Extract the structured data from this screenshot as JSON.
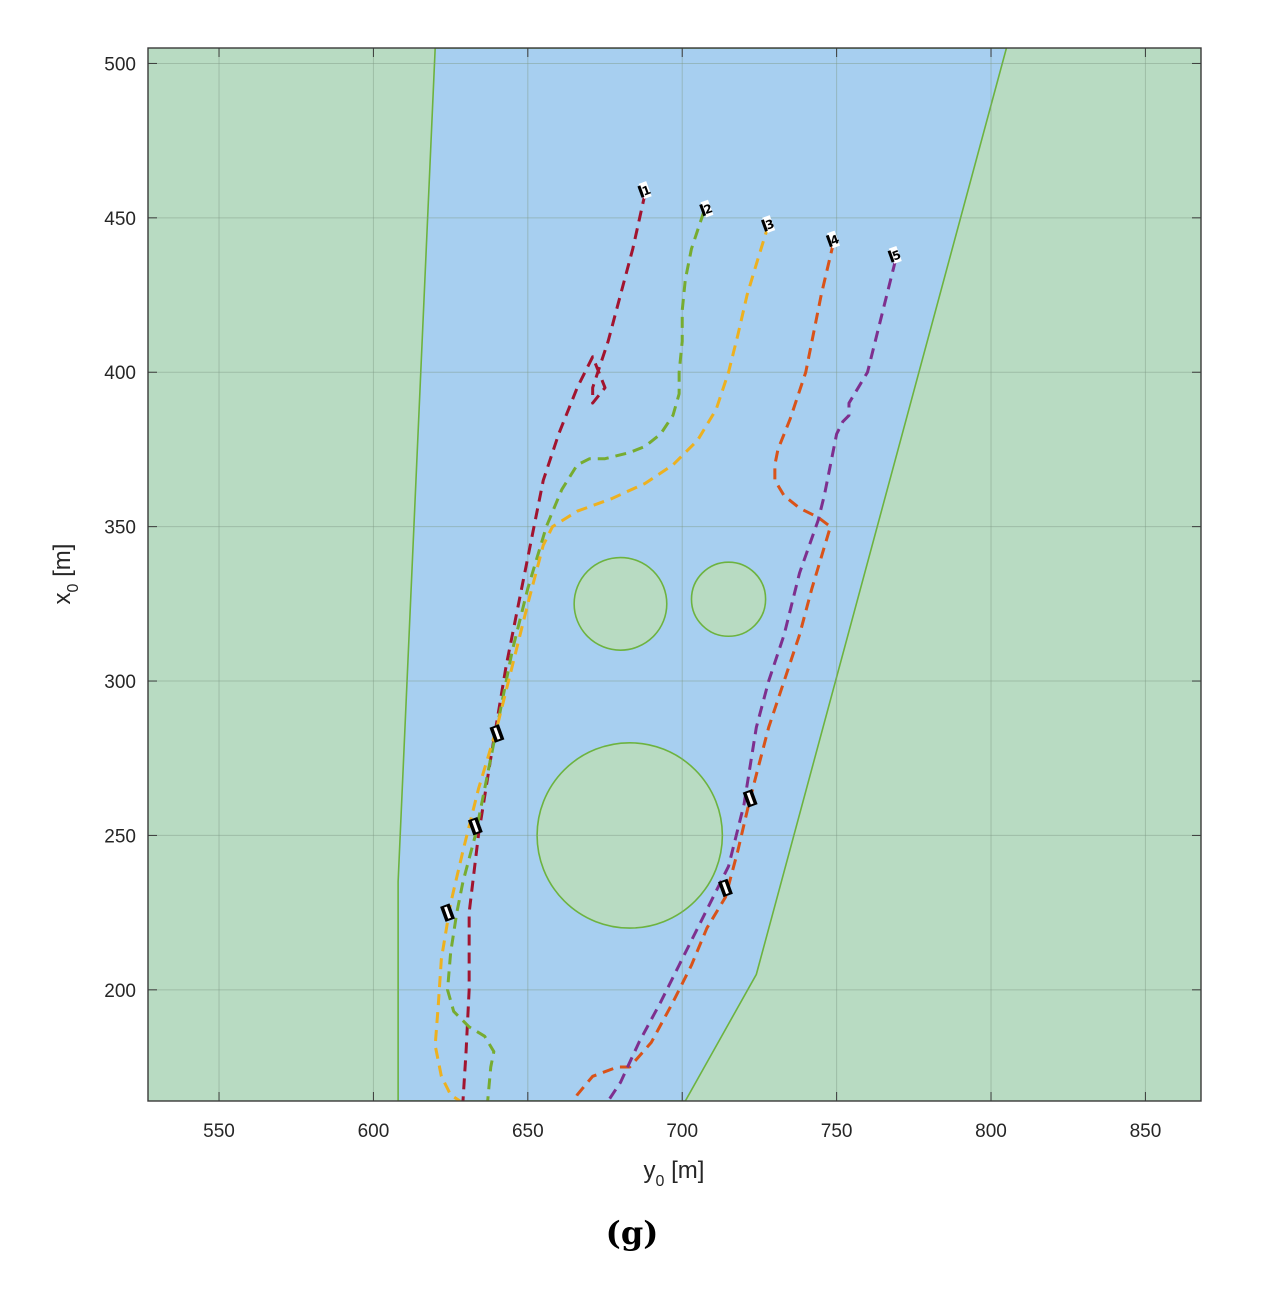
{
  "chart_data": {
    "type": "line",
    "title": "",
    "xlabel": {
      "main": "y",
      "sub": "0",
      "unit": " [m]"
    },
    "ylabel": {
      "main": "x",
      "sub": "0",
      "unit": " [m]"
    },
    "xlim": [
      527,
      868
    ],
    "ylim": [
      164,
      505
    ],
    "xticks": [
      550,
      600,
      650,
      700,
      750,
      800,
      850
    ],
    "yticks": [
      200,
      250,
      300,
      350,
      400,
      450,
      500
    ],
    "grid": true,
    "panel_label": "(g)",
    "colors": {
      "land": "#b8dbc2",
      "water": "#a7cff0",
      "shore": "#6db33f",
      "grid": "#7f9a86",
      "frame": "#3a3a3a"
    },
    "channel_polygon": [
      [
        620,
        505
      ],
      [
        805,
        505
      ],
      [
        724,
        205
      ],
      [
        701,
        164
      ],
      [
        608,
        164
      ],
      [
        608,
        235
      ]
    ],
    "obstacles": [
      {
        "cx": 680,
        "cy": 325,
        "r": 15
      },
      {
        "cx": 715,
        "cy": 326.5,
        "r": 12
      },
      {
        "cx": 683,
        "cy": 250,
        "r": 30
      }
    ],
    "series": [
      {
        "color": "#a2142f",
        "y": [
          688,
          684,
          676,
          671,
          671,
          675,
          671,
          666,
          660,
          655,
          652,
          648,
          643,
          638,
          634,
          631,
          631,
          630,
          629
        ],
        "x": [
          458,
          440,
          410,
          395,
          390,
          395,
          405,
          395,
          380,
          365,
          350,
          330,
          305,
          275,
          250,
          225,
          200,
          180,
          164
        ]
      },
      {
        "color": "#77ac30",
        "y": [
          707,
          703,
          701,
          700,
          700,
          699,
          699,
          697,
          693,
          688,
          683,
          675,
          670,
          666,
          661,
          656,
          653,
          650,
          645,
          641,
          637,
          633,
          629,
          627,
          625,
          624,
          626,
          631,
          636,
          639,
          638,
          637
        ],
        "x": [
          452,
          440,
          430,
          420,
          410,
          400,
          393,
          386,
          380,
          376,
          374,
          372,
          372,
          370,
          362,
          350,
          340,
          330,
          310,
          290,
          270,
          250,
          235,
          225,
          212,
          200,
          193,
          188,
          185,
          180,
          175,
          164
        ]
      },
      {
        "color": "#edb120",
        "y": [
          728,
          724,
          721,
          718,
          715,
          711,
          705,
          697,
          688,
          677,
          666,
          658,
          655,
          650,
          645,
          640,
          634,
          629,
          625,
          622,
          621,
          620,
          622,
          625,
          628
        ],
        "x": [
          448,
          435,
          425,
          412,
          400,
          388,
          378,
          370,
          364,
          359,
          355,
          350,
          344,
          325,
          305,
          285,
          265,
          245,
          228,
          210,
          195,
          182,
          172,
          166,
          164
        ]
      },
      {
        "color": "#d95319",
        "y": [
          749,
          745,
          740,
          735,
          731,
          730,
          730,
          733,
          738,
          744,
          748,
          745,
          742,
          738,
          733,
          728,
          722,
          718,
          714,
          708,
          703,
          697,
          690,
          683,
          679,
          671,
          666,
          665
        ],
        "x": [
          442,
          425,
          400,
          385,
          375,
          370,
          365,
          360,
          356,
          353,
          350,
          340,
          330,
          315,
          300,
          285,
          262,
          245,
          230,
          220,
          208,
          196,
          183,
          175,
          175,
          172,
          166,
          164
        ]
      },
      {
        "color": "#7e2f8e",
        "y": [
          769,
          765,
          760,
          757,
          754,
          754,
          752,
          750,
          748,
          746,
          744,
          738,
          733,
          728,
          724,
          720,
          715,
          710,
          705,
          699,
          693,
          686,
          680,
          676
        ],
        "x": [
          436,
          420,
          400,
          395,
          390,
          386,
          384,
          380,
          370,
          360,
          352,
          335,
          315,
          300,
          285,
          260,
          240,
          230,
          220,
          208,
          196,
          183,
          170,
          164
        ]
      }
    ],
    "markers": [
      {
        "y": 688,
        "x": 459,
        "label": "1"
      },
      {
        "y": 708,
        "x": 453,
        "label": "2"
      },
      {
        "y": 728,
        "x": 448,
        "label": "3"
      },
      {
        "y": 749,
        "x": 443,
        "label": "4"
      },
      {
        "y": 769,
        "x": 438,
        "label": "5"
      },
      {
        "y": 640,
        "x": 283,
        "label": ""
      },
      {
        "y": 633,
        "x": 253,
        "label": ""
      },
      {
        "y": 624,
        "x": 225,
        "label": ""
      },
      {
        "y": 722,
        "x": 262,
        "label": ""
      },
      {
        "y": 714,
        "x": 233,
        "label": ""
      }
    ]
  }
}
